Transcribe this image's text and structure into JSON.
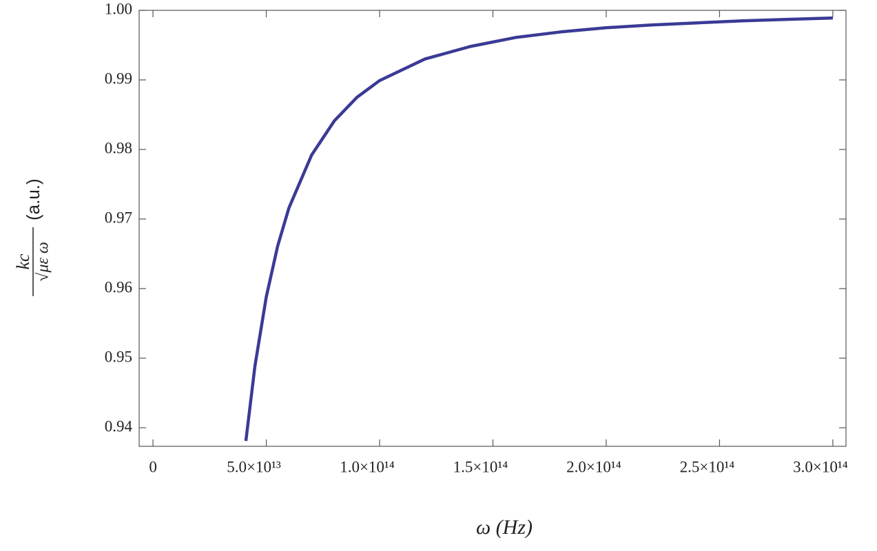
{
  "chart_data": {
    "type": "line",
    "xlabel": "ω (Hz)",
    "ylabel_numerator": "kc",
    "ylabel_denominator": "√με ω",
    "ylabel_unit": "(a.u.)",
    "x": [
      41000000000000.0,
      45000000000000.0,
      50000000000000.0,
      55000000000000.0,
      60000000000000.0,
      70000000000000.0,
      80000000000000.0,
      90000000000000.0,
      100000000000000.0,
      120000000000000.0,
      140000000000000.0,
      160000000000000.0,
      180000000000000.0,
      200000000000000.0,
      220000000000000.0,
      240000000000000.0,
      260000000000000.0,
      280000000000000.0,
      300000000000000.0
    ],
    "series": [
      {
        "color": "#3a3a96",
        "values": [
          0.9381,
          0.9489,
          0.9588,
          0.9661,
          0.9716,
          0.9792,
          0.9841,
          0.9875,
          0.9899,
          0.993,
          0.9948,
          0.9961,
          0.9969,
          0.9975,
          0.9979,
          0.9982,
          0.9985,
          0.9987,
          0.9989
        ]
      }
    ],
    "xlim": [
      -6100000000000.0,
      305800000000000.0
    ],
    "ylim": [
      0.93733,
      1.0
    ],
    "xticks": [
      0,
      {
        "value": 50000000000000.0,
        "label": "5.0×10¹³"
      },
      {
        "value": 100000000000000.0,
        "label": "1.0×10¹⁴"
      },
      {
        "value": 150000000000000.0,
        "label": "1.5×10¹⁴"
      },
      {
        "value": 200000000000000.0,
        "label": "2.0×10¹⁴"
      },
      {
        "value": 250000000000000.0,
        "label": "2.5×10¹⁴"
      },
      {
        "value": 300000000000000.0,
        "label": "3.0×10¹⁴"
      }
    ],
    "yticks": [
      0.94,
      0.95,
      0.96,
      0.97,
      0.98,
      0.99,
      {
        "value": 1.0,
        "label": "1.00"
      }
    ]
  }
}
